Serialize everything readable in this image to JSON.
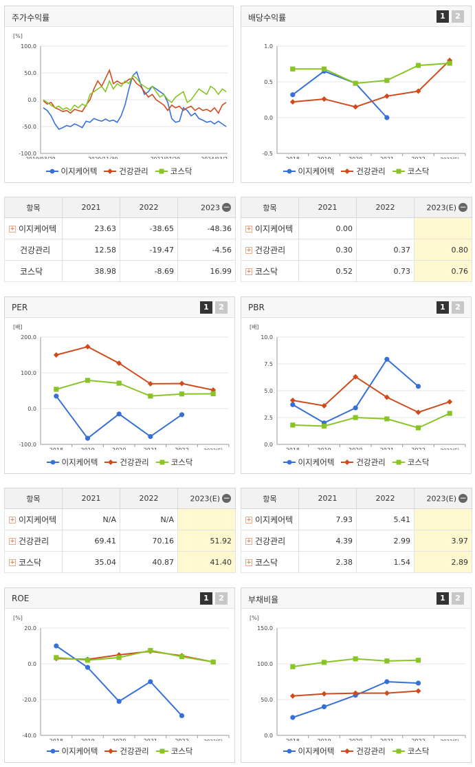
{
  "legend": [
    "이지케어텍",
    "건강관리",
    "코스닥"
  ],
  "colors": {
    "s1": "#3670d6",
    "s2": "#d04a1c",
    "s3": "#88c425"
  },
  "icons": {
    "expand": "plus-icon",
    "collapse": "minus-icon"
  },
  "panels": {
    "stock": {
      "title": "주가수익률"
    },
    "dividend": {
      "title": "배당수익률",
      "page1": "1",
      "page2": "2"
    },
    "per": {
      "title": "PER",
      "page1": "1",
      "page2": "2"
    },
    "pbr": {
      "title": "PBR",
      "page1": "1",
      "page2": "2"
    },
    "roe": {
      "title": "ROE",
      "page1": "1",
      "page2": "2"
    },
    "debt": {
      "title": "부채비율",
      "page1": "1",
      "page2": "2"
    }
  },
  "tables": {
    "stock": {
      "head": "항목",
      "cols": [
        "2021",
        "2022",
        "2023"
      ],
      "rows": [
        {
          "name": "이지케어텍",
          "v": [
            "23.63",
            "-38.65",
            "-48.36"
          ],
          "plus": true
        },
        {
          "name": "건강관리",
          "v": [
            "12.58",
            "-19.47",
            "-4.56"
          ],
          "plus": false
        },
        {
          "name": "코스닥",
          "v": [
            "38.98",
            "-8.69",
            "16.99"
          ],
          "plus": false
        }
      ]
    },
    "dividend": {
      "head": "항목",
      "cols": [
        "2021",
        "2022",
        "2023(E)"
      ],
      "rows": [
        {
          "name": "이지케어텍",
          "v": [
            "0.00",
            "",
            ""
          ],
          "plus": true
        },
        {
          "name": "건강관리",
          "v": [
            "0.30",
            "0.37",
            "0.80"
          ],
          "plus": true
        },
        {
          "name": "코스닥",
          "v": [
            "0.52",
            "0.73",
            "0.76"
          ],
          "plus": true
        }
      ]
    },
    "per": {
      "head": "항목",
      "cols": [
        "2021",
        "2022",
        "2023(E)"
      ],
      "rows": [
        {
          "name": "이지케어텍",
          "v": [
            "N/A",
            "N/A",
            ""
          ],
          "plus": true
        },
        {
          "name": "건강관리",
          "v": [
            "69.41",
            "70.16",
            "51.92"
          ],
          "plus": true
        },
        {
          "name": "코스닥",
          "v": [
            "35.04",
            "40.87",
            "41.40"
          ],
          "plus": true
        }
      ]
    },
    "pbr": {
      "head": "항목",
      "cols": [
        "2021",
        "2022",
        "2023(E)"
      ],
      "rows": [
        {
          "name": "이지케어텍",
          "v": [
            "7.93",
            "5.41",
            ""
          ],
          "plus": true
        },
        {
          "name": "건강관리",
          "v": [
            "4.39",
            "2.99",
            "3.97"
          ],
          "plus": true
        },
        {
          "name": "코스닥",
          "v": [
            "2.38",
            "1.54",
            "2.89"
          ],
          "plus": true
        }
      ]
    }
  },
  "chart_data": [
    {
      "id": "stock",
      "type": "line",
      "unit": "[%]",
      "ylim": [
        -100,
        100
      ],
      "yticks": [
        "100.0",
        "50.0",
        "0.0",
        "-50.0",
        "-100.0"
      ],
      "xticks": [
        "2019/03/29",
        "2020/11/30",
        "2022/07/29",
        "2024/03/2"
      ],
      "series": [
        {
          "name": "이지케어텍",
          "values": [
            -15,
            -20,
            -30,
            -45,
            -55,
            -52,
            -48,
            -50,
            -45,
            -48,
            -52,
            -40,
            -42,
            -35,
            -38,
            -40,
            -36,
            -40,
            -38,
            -42,
            -30,
            -10,
            20,
            45,
            52,
            30,
            10,
            15,
            25,
            20,
            15,
            10,
            -5,
            -35,
            -42,
            -40,
            -15,
            -20,
            -30,
            -25,
            -35,
            -38,
            -42,
            -40,
            -45,
            -40,
            -45,
            -50
          ]
        },
        {
          "name": "건강관리",
          "values": [
            -2,
            -8,
            -5,
            -15,
            -18,
            -22,
            -20,
            -25,
            -18,
            -20,
            -22,
            -10,
            0,
            20,
            35,
            25,
            40,
            55,
            30,
            35,
            30,
            32,
            38,
            40,
            30,
            25,
            15,
            5,
            10,
            0,
            -5,
            -10,
            -20,
            -10,
            -15,
            -12,
            -20,
            -15,
            -12,
            -20,
            -15,
            -20,
            -18,
            -22,
            -15,
            -25,
            -10,
            -5
          ]
        },
        {
          "name": "코스닥",
          "values": [
            0,
            -5,
            -10,
            -15,
            -12,
            -18,
            -15,
            -20,
            -10,
            -15,
            -8,
            -12,
            10,
            15,
            20,
            25,
            15,
            35,
            20,
            30,
            25,
            35,
            30,
            45,
            40,
            30,
            25,
            20,
            25,
            15,
            5,
            10,
            0,
            -5,
            5,
            10,
            15,
            -5,
            0,
            10,
            20,
            15,
            10,
            25,
            20,
            10,
            20,
            15
          ]
        }
      ]
    },
    {
      "id": "dividend",
      "type": "line",
      "unit": "",
      "ylim": [
        -0.5,
        1.0
      ],
      "yticks": [
        "1.0",
        "0.5",
        "0.0",
        "-0.5"
      ],
      "categories": [
        "2018",
        "2019",
        "2020",
        "2021",
        "2022",
        "2023(E)"
      ],
      "series": [
        {
          "name": "이지케어텍",
          "values": [
            0.32,
            0.65,
            0.48,
            0.0,
            null,
            null
          ]
        },
        {
          "name": "건강관리",
          "values": [
            0.22,
            0.26,
            0.15,
            0.3,
            0.37,
            0.8
          ]
        },
        {
          "name": "코스닥",
          "values": [
            0.68,
            0.68,
            0.48,
            0.52,
            0.73,
            0.76
          ]
        }
      ]
    },
    {
      "id": "per",
      "type": "line",
      "unit": "[배]",
      "ylim": [
        -100,
        200
      ],
      "yticks": [
        "200.0",
        "100.0",
        "0.0",
        "-100.0"
      ],
      "categories": [
        "2018",
        "2019",
        "2020",
        "2021",
        "2022",
        "2023(E)"
      ],
      "series": [
        {
          "name": "이지케어텍",
          "values": [
            35,
            -83,
            -15,
            -78,
            -17,
            null
          ]
        },
        {
          "name": "건강관리",
          "values": [
            150,
            173,
            127,
            69.41,
            70.16,
            51.92
          ]
        },
        {
          "name": "코스닥",
          "values": [
            54,
            79,
            71,
            35.04,
            40.87,
            41.4
          ]
        }
      ]
    },
    {
      "id": "pbr",
      "type": "line",
      "unit": "[배]",
      "ylim": [
        0,
        10
      ],
      "yticks": [
        "10.0",
        "7.5",
        "5.0",
        "2.5",
        "0.0"
      ],
      "categories": [
        "2018",
        "2019",
        "2020",
        "2021",
        "2022",
        "2023(E)"
      ],
      "series": [
        {
          "name": "이지케어텍",
          "values": [
            3.7,
            2.0,
            3.4,
            7.93,
            5.41,
            null
          ]
        },
        {
          "name": "건강관리",
          "values": [
            4.1,
            3.6,
            6.3,
            4.39,
            2.99,
            3.97
          ]
        },
        {
          "name": "코스닥",
          "values": [
            1.8,
            1.7,
            2.5,
            2.38,
            1.54,
            2.89
          ]
        }
      ]
    },
    {
      "id": "roe",
      "type": "line",
      "unit": "[%]",
      "ylim": [
        -40,
        20
      ],
      "yticks": [
        "20.0",
        "0.0",
        "-20.0",
        "-40.0"
      ],
      "categories": [
        "2018",
        "2019",
        "2020",
        "2021",
        "2022",
        "2023(E)"
      ],
      "series": [
        {
          "name": "이지케어텍",
          "values": [
            10,
            -2,
            -21,
            -10,
            -29,
            null
          ]
        },
        {
          "name": "건강관리",
          "values": [
            3,
            2.5,
            5,
            7,
            4.5,
            1
          ]
        },
        {
          "name": "코스닥",
          "values": [
            3.5,
            2,
            3.5,
            7.5,
            4,
            1
          ]
        }
      ]
    },
    {
      "id": "debt",
      "type": "line",
      "unit": "[%]",
      "ylim": [
        0,
        150
      ],
      "yticks": [
        "150.0",
        "100.0",
        "50.0",
        "0.0"
      ],
      "categories": [
        "2018",
        "2019",
        "2020",
        "2021",
        "2022",
        "2023(E)"
      ],
      "series": [
        {
          "name": "이지케어텍",
          "values": [
            25,
            40,
            56,
            75,
            73,
            null
          ]
        },
        {
          "name": "건강관리",
          "values": [
            55,
            58,
            59,
            59,
            62,
            null
          ]
        },
        {
          "name": "코스닥",
          "values": [
            96,
            102,
            107,
            104,
            105,
            null
          ]
        }
      ]
    }
  ]
}
